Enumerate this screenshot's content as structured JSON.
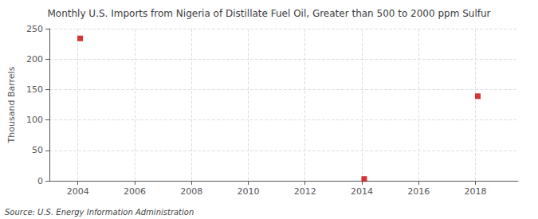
{
  "chart_data": {
    "type": "scatter",
    "title": "Monthly U.S. Imports from Nigeria of Distillate Fuel Oil, Greater than 500 to 2000 ppm Sulfur",
    "ylabel": "Thousand Barrels",
    "source": "Source: U.S. Energy Information Administration",
    "x": [
      2004.083,
      2014.083,
      2018.083
    ],
    "values": [
      234,
      3,
      139
    ],
    "color": "#cc0000",
    "marker": "square",
    "xlim": [
      2003.0,
      2019.5
    ],
    "ylim": [
      0,
      250
    ],
    "xticks": [
      2004,
      2006,
      2008,
      2010,
      2012,
      2014,
      2016,
      2018
    ],
    "yticks": [
      0,
      50,
      100,
      150,
      200,
      250
    ],
    "grid": true
  }
}
